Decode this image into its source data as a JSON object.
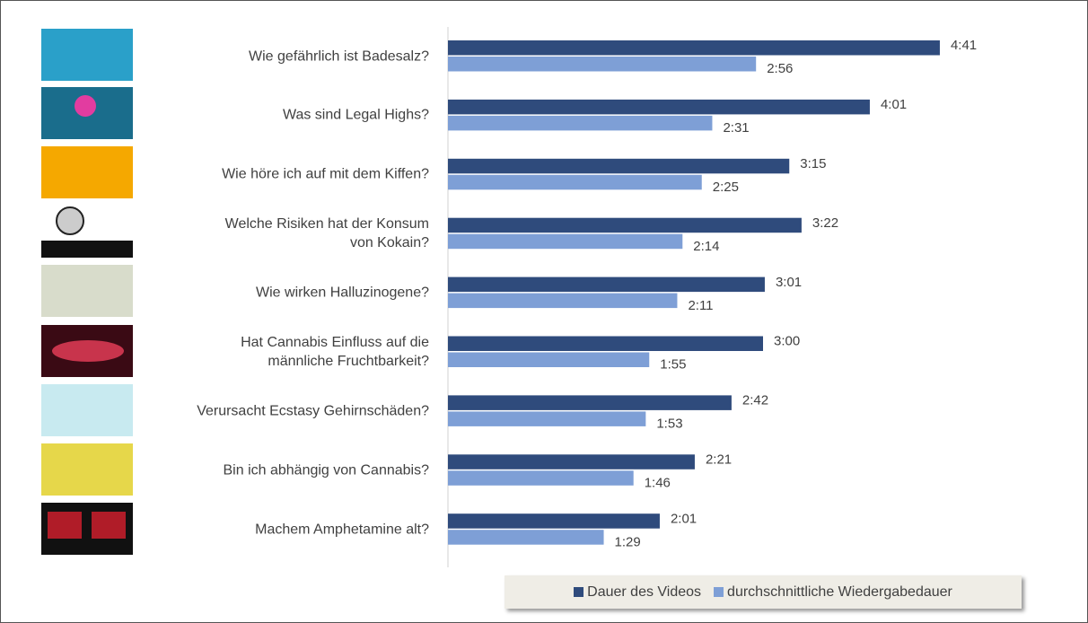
{
  "chart_data": {
    "type": "bar",
    "orientation": "horizontal",
    "categories": [
      "Wie gefährlich ist Badesalz?",
      "Was sind Legal Highs?",
      "Wie höre ich auf mit dem Kiffen?",
      "Welche Risiken hat der Konsum\nvon Kokain?",
      "Wie wirken Halluzinogene?",
      "Hat Cannabis Einfluss auf die\nmännliche Fruchtbarkeit?",
      "Verursacht Ecstasy Gehirnschäden?",
      "Bin ich abhängig von Cannabis?",
      "Machem Amphetamine alt?"
    ],
    "series": [
      {
        "name": "Dauer des Videos",
        "color": "#2f4b7c",
        "values": [
          281,
          241,
          195,
          202,
          181,
          180,
          162,
          141,
          121
        ],
        "value_labels": [
          "4:41",
          "4:01",
          "3:15",
          "3:22",
          "3:01",
          "3:00",
          "2:42",
          "2:21",
          "2:01"
        ]
      },
      {
        "name": "durchschnittliche Wiedergabedauer",
        "color": "#7e9fd6",
        "values": [
          176,
          151,
          145,
          134,
          131,
          115,
          113,
          106,
          89
        ],
        "value_labels": [
          "2:56",
          "2:31",
          "2:25",
          "2:14",
          "2:11",
          "1:55",
          "1:53",
          "1:46",
          "1:29"
        ]
      }
    ],
    "xlim": [
      0,
      360
    ],
    "legend": "bottom"
  }
}
